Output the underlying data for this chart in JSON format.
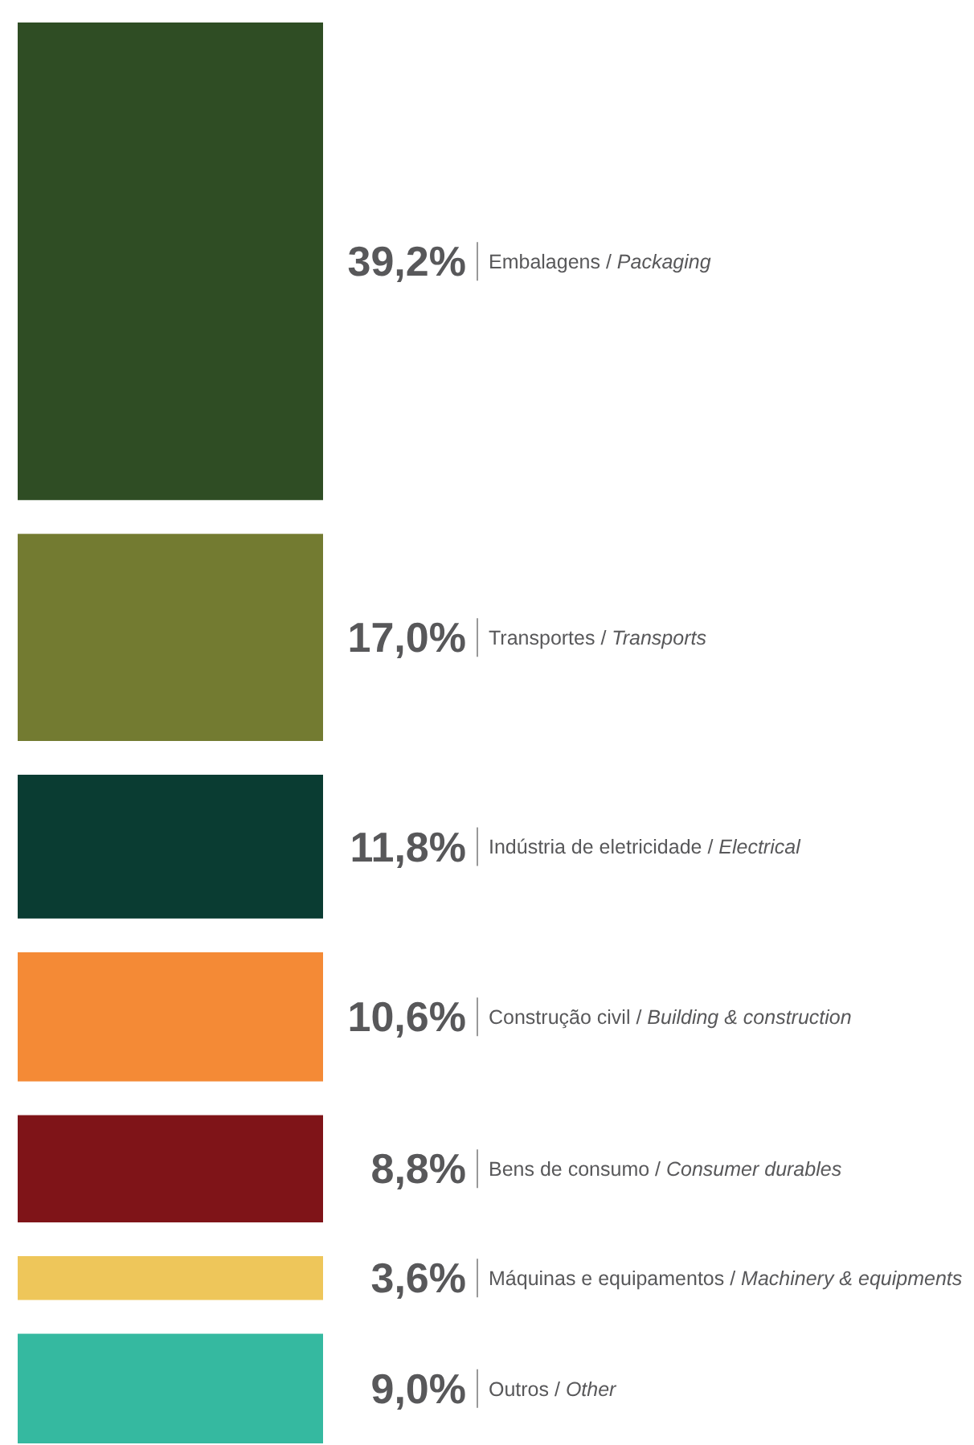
{
  "chart_data": {
    "type": "other",
    "categories": [
      "Embalagens / Packaging",
      "Transportes / Transports",
      "Indústria de eletricidade / Electrical",
      "Construção civil / Building & construction",
      "Bens de consumo / Consumer durables",
      "Máquinas e equipamentos / Machinery & equipments",
      "Outros / Other"
    ],
    "values": [
      39.2,
      17.0,
      11.8,
      10.6,
      8.8,
      3.6,
      9.0
    ],
    "value_labels": [
      "39,2%",
      "17,0%",
      "11,8%",
      "10,6%",
      "8,8%",
      "3,6%",
      "9,0%"
    ],
    "colors": [
      "#2f4d24",
      "#737b31",
      "#0a3c32",
      "#f48a36",
      "#7f1418",
      "#eec65a",
      "#35b9a0"
    ]
  }
}
